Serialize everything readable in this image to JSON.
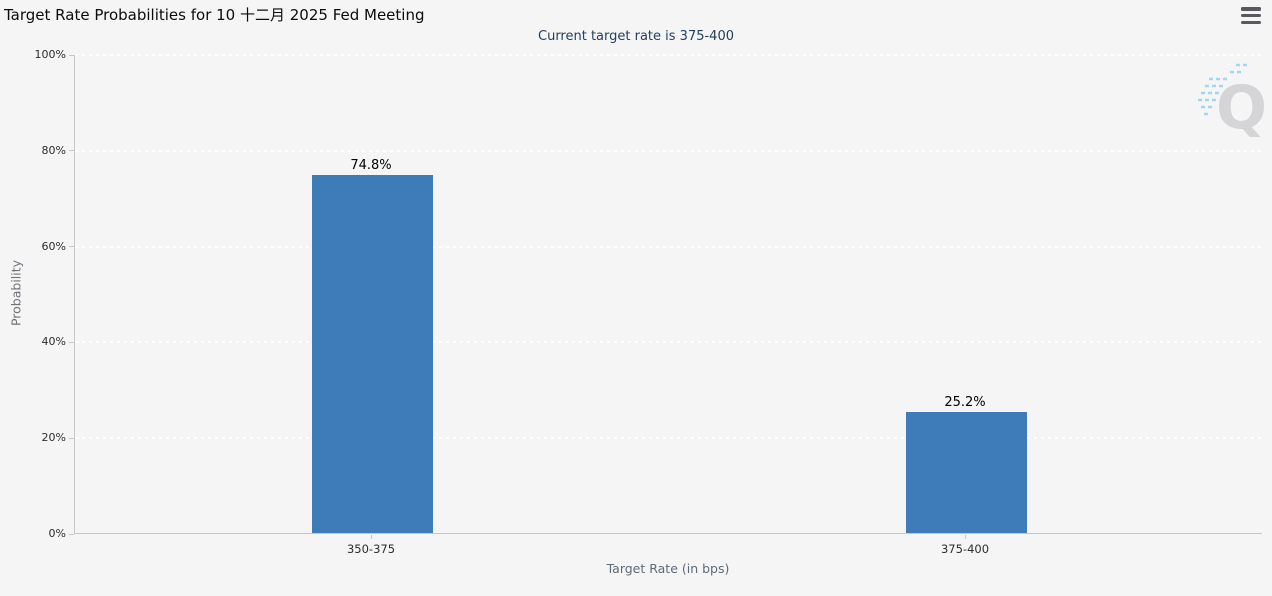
{
  "header": {
    "title": "Target Rate Probabilities for 10 十二月 2025 Fed Meeting"
  },
  "chart": {
    "subtitle": "Current target rate is 375-400",
    "watermark_letter": "Q"
  },
  "chart_data": {
    "type": "bar",
    "title": "Target Rate Probabilities for 10 十二月 2025 Fed Meeting",
    "subtitle": "Current target rate is 375-400",
    "categories": [
      "350-375",
      "375-400"
    ],
    "values": [
      74.8,
      25.2
    ],
    "value_labels": [
      "74.8%",
      "25.2%"
    ],
    "xlabel": "Target Rate (in bps)",
    "ylabel": "Probability",
    "ylim": [
      0,
      100
    ],
    "ytick_step": 20,
    "ytick_labels": [
      "0%",
      "20%",
      "40%",
      "60%",
      "80%",
      "100%"
    ],
    "bar_color": "#3d7cb8",
    "background_color": "#f5f5f6",
    "grid": "dotted-white-horizontal",
    "legend": "none"
  }
}
